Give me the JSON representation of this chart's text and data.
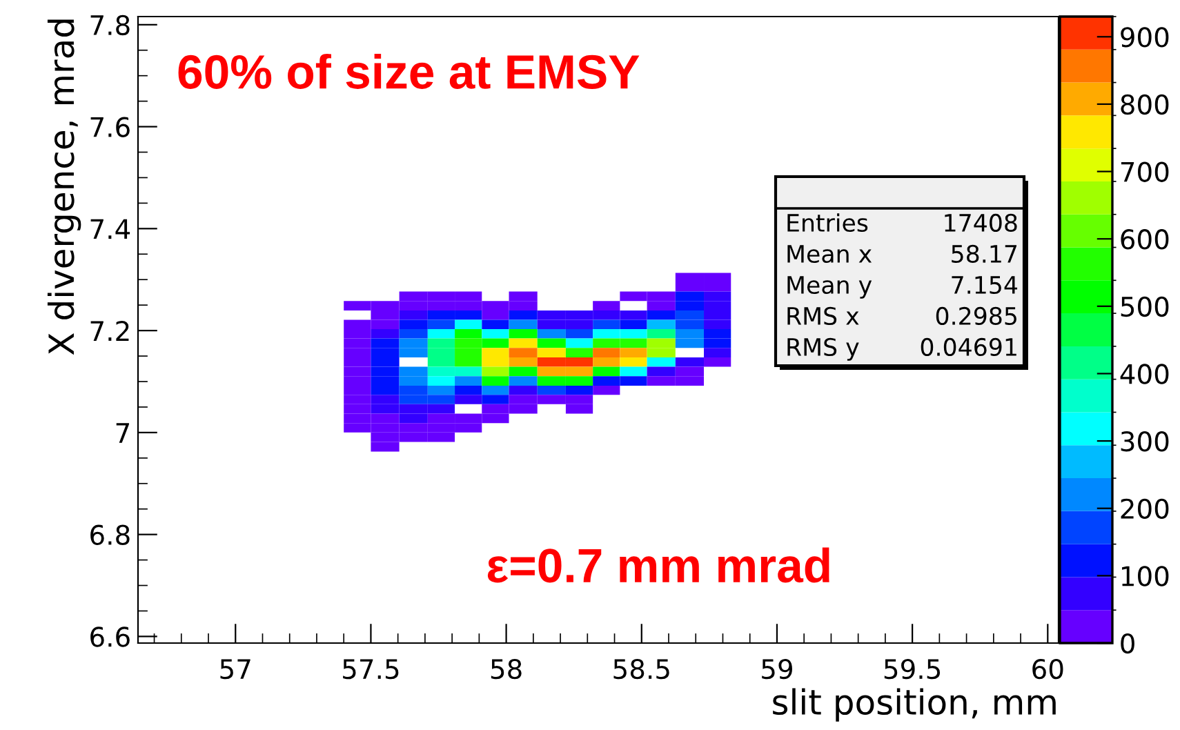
{
  "chart_data": {
    "type": "heatmap",
    "xlabel": "slit position, mm",
    "ylabel": "X divergence, mrad",
    "annotations": [
      "60% of size at EMSY",
      "ε=0.7 mm mrad",
      "Entries",
      "17408",
      "Mean x",
      "58.17",
      "Mean y",
      "7.154",
      "RMS x",
      "0.2985",
      "RMS y",
      "0.04691"
    ],
    "x": [
      57.45,
      57.55,
      57.66,
      57.76,
      57.86,
      57.96,
      58.06,
      58.17,
      58.27,
      58.37,
      58.47,
      58.57,
      58.68,
      58.78
    ],
    "y": [
      7.304,
      7.286,
      7.267,
      7.249,
      7.23,
      7.212,
      7.194,
      7.175,
      7.157,
      7.138,
      7.12,
      7.101,
      7.083,
      7.065,
      7.046,
      7.028,
      7.009,
      6.991,
      6.972
    ],
    "cells": [
      [
        null,
        null,
        null,
        null,
        null,
        null,
        null,
        null,
        null,
        null,
        null,
        null,
        25,
        25
      ],
      [
        null,
        null,
        null,
        null,
        null,
        null,
        null,
        null,
        null,
        null,
        null,
        null,
        25,
        25
      ],
      [
        null,
        null,
        25,
        25,
        25,
        null,
        25,
        null,
        null,
        null,
        25,
        25,
        125,
        75
      ],
      [
        25,
        25,
        25,
        25,
        25,
        25,
        25,
        null,
        null,
        25,
        null,
        25,
        125,
        75
      ],
      [
        null,
        25,
        75,
        125,
        125,
        25,
        125,
        75,
        75,
        75,
        75,
        125,
        175,
        75
      ],
      [
        25,
        25,
        125,
        175,
        325,
        125,
        225,
        75,
        75,
        175,
        125,
        275,
        175,
        75
      ],
      [
        25,
        75,
        175,
        325,
        525,
        325,
        525,
        225,
        175,
        325,
        325,
        425,
        225,
        125
      ],
      [
        25,
        125,
        225,
        425,
        575,
        525,
        775,
        525,
        325,
        575,
        575,
        675,
        225,
        125
      ],
      [
        25,
        125,
        225,
        425,
        575,
        775,
        875,
        775,
        575,
        875,
        825,
        675,
        null,
        75
      ],
      [
        25,
        125,
        null,
        425,
        575,
        775,
        825,
        925,
        925,
        825,
        775,
        325,
        75,
        25
      ],
      [
        25,
        125,
        225,
        375,
        375,
        675,
        525,
        825,
        825,
        525,
        325,
        75,
        25,
        null
      ],
      [
        25,
        125,
        225,
        325,
        225,
        525,
        225,
        525,
        525,
        125,
        125,
        25,
        25,
        null
      ],
      [
        25,
        125,
        175,
        225,
        125,
        225,
        75,
        175,
        125,
        25,
        null,
        null,
        null,
        null
      ],
      [
        25,
        75,
        175,
        175,
        75,
        125,
        25,
        25,
        25,
        null,
        null,
        null,
        null,
        null
      ],
      [
        25,
        75,
        75,
        75,
        null,
        25,
        25,
        null,
        25,
        null,
        null,
        null,
        null,
        null
      ],
      [
        25,
        25,
        75,
        25,
        25,
        25,
        null,
        null,
        null,
        null,
        null,
        null,
        null,
        null
      ],
      [
        25,
        25,
        25,
        25,
        25,
        null,
        null,
        null,
        null,
        null,
        null,
        null,
        null,
        null
      ],
      [
        null,
        25,
        25,
        25,
        null,
        null,
        null,
        null,
        null,
        null,
        null,
        null,
        null,
        null
      ],
      [
        null,
        25,
        null,
        null,
        null,
        null,
        null,
        null,
        null,
        null,
        null,
        null,
        null,
        null
      ]
    ],
    "colors": [
      "#6600ff",
      "#3300ff",
      "#0011ff",
      "#0044ff",
      "#0088ff",
      "#00bbff",
      "#00ffff",
      "#00ffcc",
      "#00ff88",
      "#00ff44",
      "#00ff00",
      "#22ff00",
      "#66ff00",
      "#a0ff00",
      "#e0ff00",
      "#ffe800",
      "#ffaa00",
      "#ff7700",
      "#ff3300"
    ],
    "xlim": [
      56.64,
      60.04
    ],
    "xticks": [
      57,
      57.5,
      58,
      58.5,
      59,
      59.5,
      60
    ],
    "ylim": [
      6.587,
      7.816
    ],
    "yticks": [
      6.6,
      6.8,
      {
        "value": 7,
        "label": "7"
      },
      7.2,
      7.4,
      7.6,
      7.8
    ],
    "clim": [
      0,
      930
    ],
    "cticks": [
      0,
      100,
      200,
      300,
      400,
      500,
      600,
      700,
      800,
      900
    ],
    "grid": false
  }
}
